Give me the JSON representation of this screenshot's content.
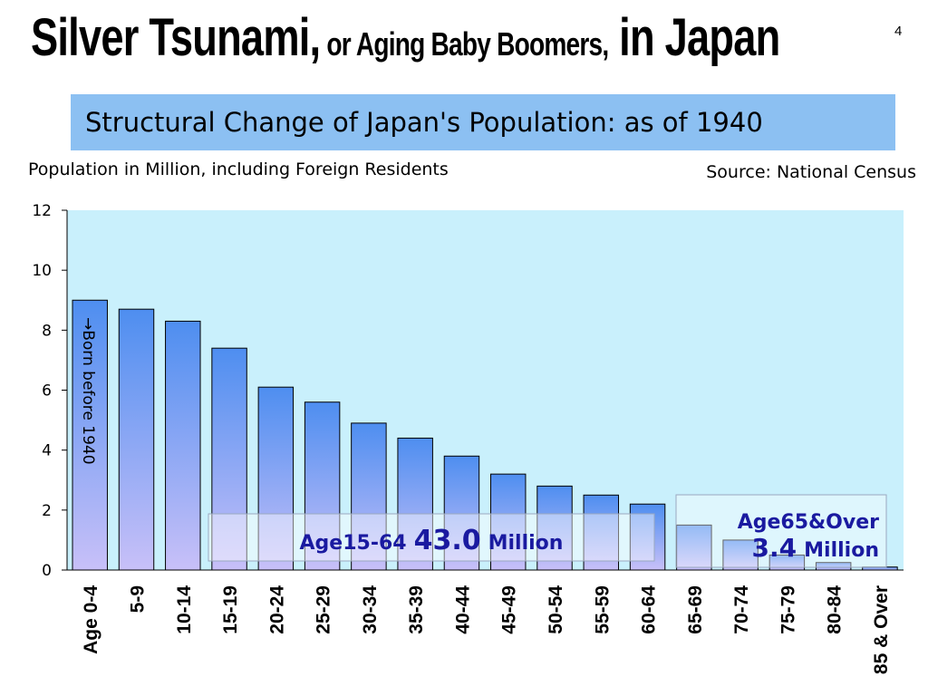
{
  "title": {
    "part1": "Silver Tsunami,",
    "part2": " or Aging Baby Boomers,",
    "part3": " in Japan"
  },
  "slide_number": "4",
  "subtitle": "Structural Change of Japan's Population: as of 1940",
  "population_caption": "Population in Million, including Foreign Residents",
  "source": "Source: National Census",
  "annotations": {
    "born_before": "→Born before 1940",
    "working_label": "Age15-64",
    "working_value": "43.0",
    "working_unit": "Million",
    "elderly_label": "Age65&Over",
    "elderly_value": "3.4",
    "elderly_unit": "Million"
  },
  "colors": {
    "plot_background": "#c9f0fc",
    "bar_top": "#4e8ef0",
    "bar_bottom": "#c8c0f8",
    "subtitle_background": "#8cc0f2",
    "annotation_text": "#1a1aa0"
  },
  "chart_data": {
    "type": "bar",
    "categories": [
      "Age 0-4",
      "5-9",
      "10-14",
      "15-19",
      "20-24",
      "25-29",
      "30-34",
      "35-39",
      "40-44",
      "45-49",
      "50-54",
      "55-59",
      "60-64",
      "65-69",
      "70-74",
      "75-79",
      "80-84",
      "85 & Over"
    ],
    "values": [
      9.0,
      8.7,
      8.3,
      7.4,
      6.1,
      5.6,
      4.9,
      4.4,
      3.8,
      3.2,
      2.8,
      2.5,
      2.2,
      1.5,
      1.0,
      0.5,
      0.25,
      0.1
    ],
    "yticks": [
      0,
      2,
      4,
      6,
      8,
      10,
      12
    ],
    "ylim": [
      0,
      12
    ],
    "grid": false,
    "legend": "none"
  }
}
